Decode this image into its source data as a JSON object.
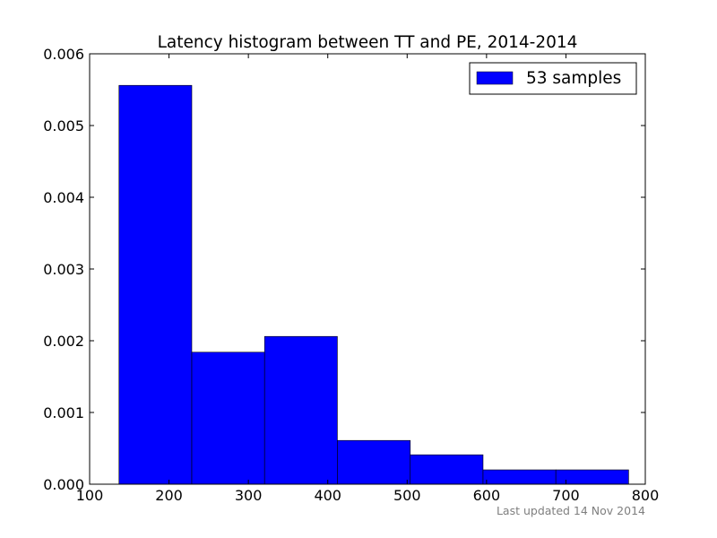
{
  "chart_data": {
    "type": "bar",
    "title": "Latency histogram between TT and PE, 2014-2014",
    "xlabel": "",
    "ylabel": "",
    "xlim": [
      100,
      800
    ],
    "ylim": [
      0,
      0.006
    ],
    "xticks": [
      "100",
      "200",
      "300",
      "400",
      "500",
      "600",
      "700",
      "800"
    ],
    "yticks": [
      "0.000",
      "0.001",
      "0.002",
      "0.003",
      "0.004",
      "0.005",
      "0.006"
    ],
    "bin_edges": [
      137,
      228.7,
      320.4,
      412.1,
      503.9,
      595.6,
      687.3,
      779
    ],
    "values": [
      0.00556,
      0.00184,
      0.00206,
      0.00061,
      0.00041,
      0.0002,
      0.0002
    ],
    "series": [
      {
        "name": "53 samples",
        "color": "#0000ff"
      }
    ],
    "legend_position": "top-right",
    "grid": false,
    "footnote": "Last updated 14 Nov 2014"
  }
}
